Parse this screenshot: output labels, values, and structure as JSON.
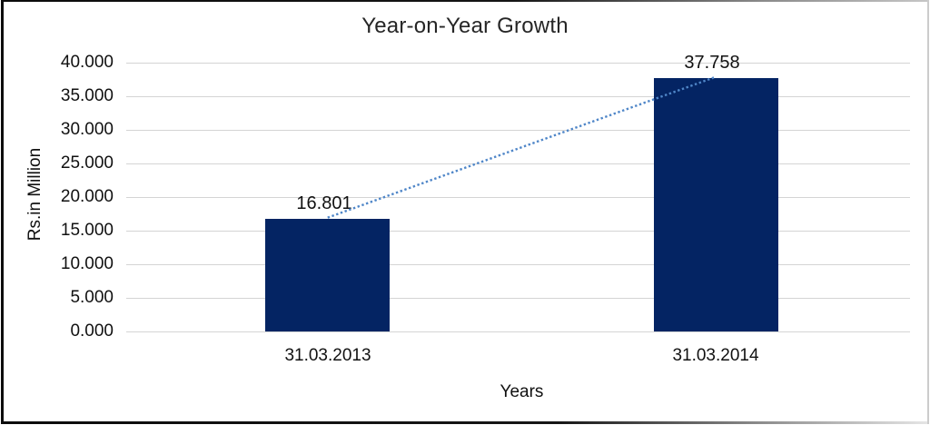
{
  "chart_data": {
    "type": "bar",
    "title": "Year-on-Year Growth",
    "xlabel": "Years",
    "ylabel": "Rs.in Million",
    "categories": [
      "31.03.2013",
      "31.03.2014"
    ],
    "values": [
      16.801,
      37.758
    ],
    "data_labels": [
      "16.801",
      "37.758"
    ],
    "ylim": [
      0,
      40
    ],
    "ytick_step": 5,
    "ytick_labels": [
      "40.000",
      "35.000",
      "30.000",
      "25.000",
      "20.000",
      "15.000",
      "10.000",
      "5.000",
      "0.000"
    ],
    "grid": true,
    "legend": "none",
    "trendline": true,
    "colors": {
      "bar": "#042463",
      "trendline": "#4f86c8",
      "gridline": "#d4d4d4",
      "text": "#111111",
      "title_text": "#262626",
      "background": "#ffffff"
    }
  }
}
